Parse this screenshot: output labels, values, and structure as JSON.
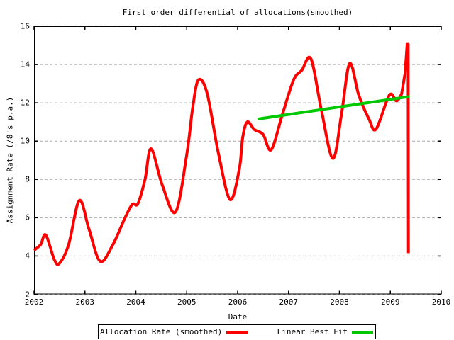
{
  "chart_data": {
    "type": "line",
    "title": "First order differential of allocations(smoothed)",
    "xlabel": "Date",
    "ylabel": "Assignment Rate (/8's p.a.)",
    "x_range": [
      2002,
      2010
    ],
    "y_range": [
      2,
      16
    ],
    "x_ticks": [
      "2002",
      "2003",
      "2004",
      "2005",
      "2006",
      "2007",
      "2008",
      "2009",
      "2010"
    ],
    "y_ticks": [
      "2",
      "4",
      "6",
      "8",
      "10",
      "12",
      "14",
      "16"
    ],
    "grid": "horizontal-dashed",
    "legend_position": "below",
    "colors": {
      "background": "#ffffff",
      "border": "#000000",
      "grid": "#a9a9a9",
      "allocation_rate": "#ff0000",
      "linear_fit": "#00c800"
    },
    "series": [
      {
        "name": "Allocation Rate (smoothed)",
        "color": "#ff0000",
        "line_width": 4,
        "smooth_points": [
          [
            2002.0,
            4.3
          ],
          [
            2002.13,
            4.6
          ],
          [
            2002.23,
            5.1
          ],
          [
            2002.4,
            3.8
          ],
          [
            2002.5,
            3.62
          ],
          [
            2002.68,
            4.6
          ],
          [
            2002.89,
            6.9
          ],
          [
            2003.08,
            5.4
          ],
          [
            2003.3,
            3.72
          ],
          [
            2003.55,
            4.6
          ],
          [
            2003.78,
            5.95
          ],
          [
            2003.93,
            6.7
          ],
          [
            2004.04,
            6.73
          ],
          [
            2004.18,
            8.0
          ],
          [
            2004.3,
            9.6
          ],
          [
            2004.52,
            7.7
          ],
          [
            2004.78,
            6.3
          ],
          [
            2005.0,
            9.3
          ],
          [
            2005.12,
            11.8
          ],
          [
            2005.23,
            13.2
          ],
          [
            2005.4,
            12.5
          ],
          [
            2005.62,
            9.4
          ],
          [
            2005.85,
            6.95
          ],
          [
            2006.03,
            8.5
          ],
          [
            2006.1,
            10.2
          ],
          [
            2006.19,
            11.0
          ],
          [
            2006.33,
            10.6
          ],
          [
            2006.5,
            10.35
          ],
          [
            2006.66,
            9.55
          ],
          [
            2006.88,
            11.4
          ],
          [
            2007.1,
            13.2
          ],
          [
            2007.26,
            13.7
          ],
          [
            2007.44,
            14.3
          ],
          [
            2007.64,
            11.7
          ],
          [
            2007.87,
            9.1
          ],
          [
            2008.04,
            11.4
          ],
          [
            2008.2,
            14.05
          ],
          [
            2008.38,
            12.4
          ],
          [
            2008.58,
            11.15
          ],
          [
            2008.72,
            10.63
          ],
          [
            2008.98,
            12.4
          ],
          [
            2009.12,
            12.1
          ],
          [
            2009.22,
            12.45
          ]
        ],
        "spike_points": [
          [
            2009.29,
            13.55
          ],
          [
            2009.33,
            15.05
          ],
          [
            2009.35,
            15.05
          ],
          [
            2009.355,
            4.15
          ]
        ]
      },
      {
        "name": "Linear Best Fit",
        "color": "#00c800",
        "line_width": 4,
        "points": [
          [
            2006.39,
            11.15
          ],
          [
            2009.38,
            12.33
          ]
        ]
      }
    ]
  }
}
